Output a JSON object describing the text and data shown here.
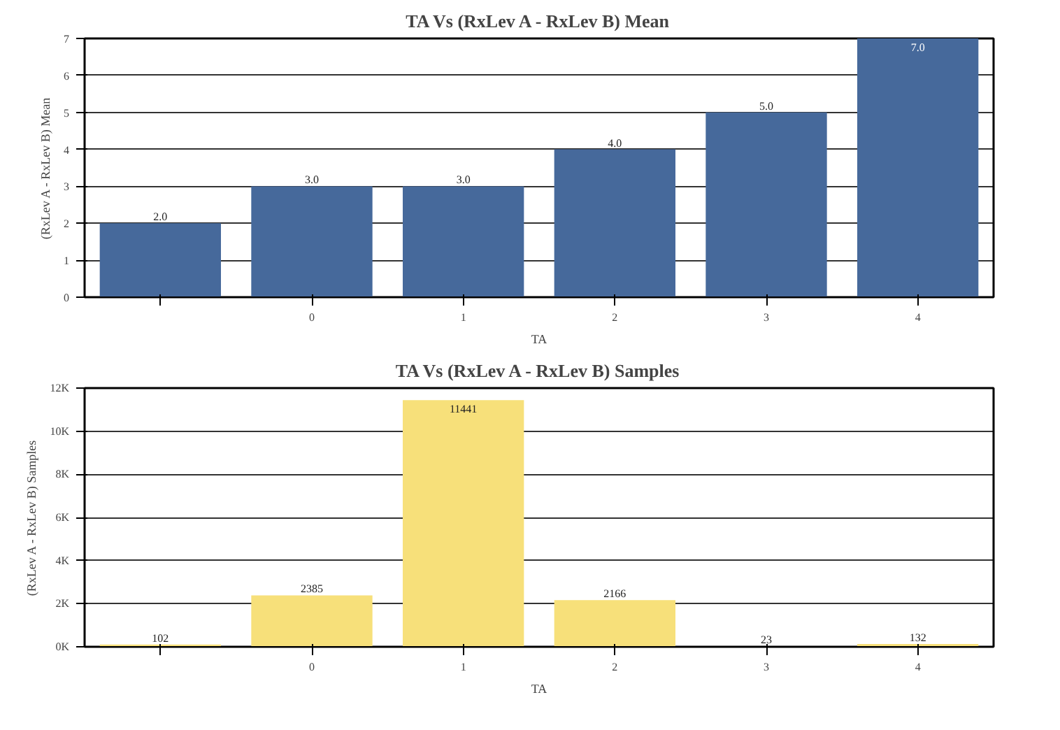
{
  "chart_data": [
    {
      "type": "bar",
      "title": "TA Vs (RxLev A - RxLev B) Mean",
      "xlabel": "TA",
      "ylabel": "(RxLev A - RxLev B) Mean",
      "categories": [
        null,
        "0",
        "1",
        "2",
        "3",
        "4"
      ],
      "values": [
        2,
        3,
        3,
        4,
        5,
        7
      ],
      "value_labels": [
        "2.0",
        "3.0",
        "3.0",
        "4.0",
        "5.0",
        "7.0"
      ],
      "color": "#46699b",
      "ylim": [
        0,
        7
      ],
      "yticks": [
        0,
        1,
        2,
        3,
        4,
        5,
        6,
        7
      ],
      "grid": "y"
    },
    {
      "type": "bar",
      "title": "TA Vs (RxLev A - RxLev B) Samples",
      "xlabel": "TA",
      "ylabel": "(RxLev A - RxLev B) Samples",
      "categories": [
        null,
        "0",
        "1",
        "2",
        "3",
        "4"
      ],
      "values": [
        102,
        2385,
        11441,
        2166,
        23,
        132
      ],
      "data_labels": true,
      "color": "#f7e07a",
      "ylim": [
        0,
        12000
      ],
      "yticks": [
        {
          "value": 0,
          "label": "0K"
        },
        {
          "value": 2000,
          "label": "2K"
        },
        {
          "value": 4000,
          "label": "4K"
        },
        {
          "value": 6000,
          "label": "6K"
        },
        {
          "value": 8000,
          "label": "8K"
        },
        {
          "value": 10000,
          "label": "10K"
        },
        {
          "value": 12000,
          "label": "12K"
        }
      ],
      "grid": "y"
    }
  ]
}
